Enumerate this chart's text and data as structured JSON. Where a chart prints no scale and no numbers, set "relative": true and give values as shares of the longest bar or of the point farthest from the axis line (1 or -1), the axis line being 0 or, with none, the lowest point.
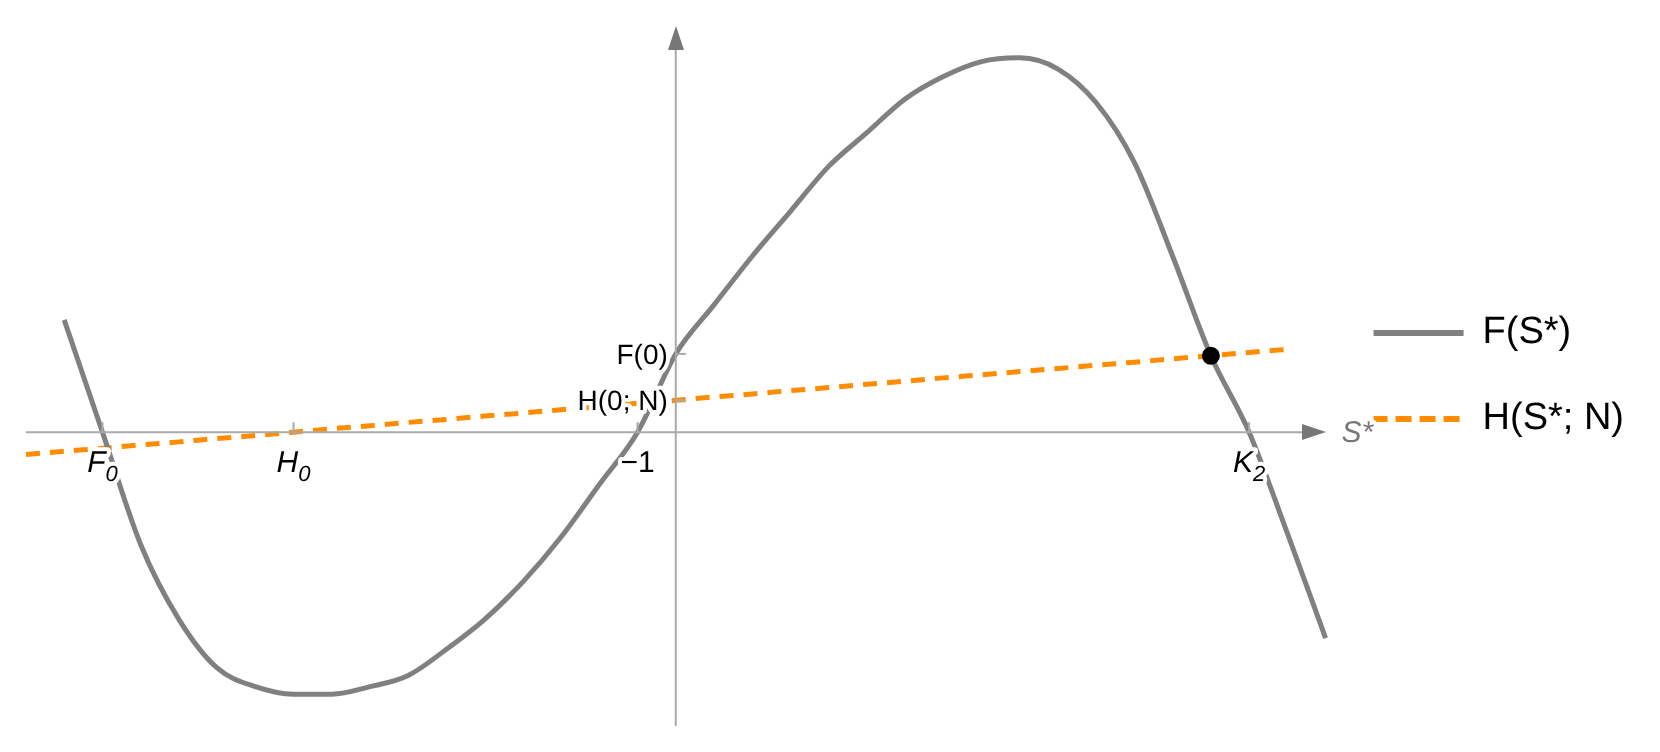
{
  "chart_data": {
    "type": "line",
    "relative": true,
    "xlabel": "S*",
    "legend": "right",
    "categories": [
      null,
      null,
      "F$_{0}$",
      null,
      null,
      null,
      null,
      "H$_{0}$",
      null,
      null,
      null,
      null,
      null,
      null,
      null,
      null,
      "−1",
      null,
      null,
      null,
      null,
      null,
      null,
      null,
      null,
      null,
      null,
      null,
      null,
      null,
      null,
      null,
      "K$_{2}$",
      null,
      null
    ],
    "annotations": [
      "F(0)",
      "H(0; N)"
    ],
    "series": [
      {
        "name": "F(S*)",
        "color": "#808080",
        "line_style": "solid",
        "marker": "none",
        "values": [
          null,
          0.3,
          0,
          -0.3,
          -0.5,
          -0.63,
          -0.68,
          -0.7,
          -0.7,
          -0.68,
          -0.65,
          -0.58,
          -0.5,
          -0.4,
          -0.28,
          -0.14,
          0,
          0.209,
          0.34,
          0.47,
          0.59,
          0.71,
          0.8,
          0.89,
          0.95,
          0.99,
          1,
          0.97,
          0.88,
          0.72,
          0.47,
          0.204,
          0,
          -0.27,
          -0.55
        ]
      },
      {
        "name": "H(S*; N)",
        "color": "#ff8c00",
        "line_style": "dashed",
        "marker": "none",
        "values": [
          -0.06,
          -0.051,
          -0.043,
          -0.034,
          -0.026,
          -0.017,
          -0.009,
          0,
          0.009,
          0.017,
          0.026,
          0.034,
          0.043,
          0.051,
          0.06,
          0.068,
          0.077,
          0.085,
          0.094,
          0.102,
          0.111,
          0.119,
          0.128,
          0.136,
          0.145,
          0.153,
          0.162,
          0.17,
          0.179,
          0.187,
          0.196,
          0.204,
          0.213,
          0.221,
          null
        ]
      },
      {
        "color": "#000000",
        "type": "scatter",
        "marker": "circle",
        "values": [
          null,
          null,
          null,
          null,
          null,
          null,
          null,
          null,
          null,
          null,
          null,
          null,
          null,
          null,
          null,
          null,
          null,
          null,
          null,
          null,
          null,
          null,
          null,
          null,
          null,
          null,
          null,
          null,
          null,
          null,
          null,
          0.204,
          null,
          null,
          null
        ]
      }
    ]
  }
}
